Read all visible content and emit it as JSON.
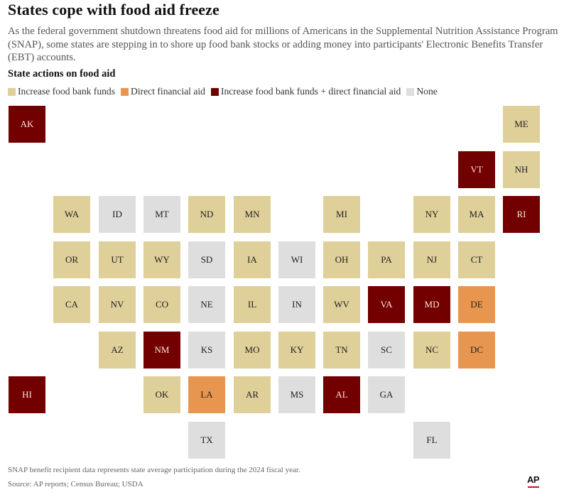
{
  "header": {
    "title": "States cope with food aid freeze",
    "subtitle": "As the federal government shutdown threatens food aid for millions of Americans in the Supplemental Nutrition Assistance Program (SNAP), some states are stepping in to shore up food bank stocks or adding money into participants' Electronic Benefits Transfer (EBT) accounts."
  },
  "legend": {
    "title": "State actions on food aid",
    "items": [
      {
        "key": "fb",
        "label": "Increase food bank funds",
        "color": "#dfcf99"
      },
      {
        "key": "dfa",
        "label": "Direct financial aid",
        "color": "#e8964f"
      },
      {
        "key": "both",
        "label": "Increase food bank funds + direct financial aid",
        "color": "#730000"
      },
      {
        "key": "none",
        "label": "None",
        "color": "#dedede"
      }
    ]
  },
  "chart_data": {
    "type": "heatmap",
    "subtype": "tile-grid-map",
    "title": "State actions on food aid",
    "categories": {
      "fb": "Increase food bank funds",
      "dfa": "Direct financial aid",
      "both": "Increase food bank funds + direct financial aid",
      "none": "None"
    },
    "tiles": [
      {
        "state": "AK",
        "row": 0,
        "col": 0,
        "category": "both"
      },
      {
        "state": "ME",
        "row": 0,
        "col": 11,
        "category": "fb"
      },
      {
        "state": "VT",
        "row": 1,
        "col": 10,
        "category": "both"
      },
      {
        "state": "NH",
        "row": 1,
        "col": 11,
        "category": "fb"
      },
      {
        "state": "WA",
        "row": 2,
        "col": 1,
        "category": "fb"
      },
      {
        "state": "ID",
        "row": 2,
        "col": 2,
        "category": "none"
      },
      {
        "state": "MT",
        "row": 2,
        "col": 3,
        "category": "none"
      },
      {
        "state": "ND",
        "row": 2,
        "col": 4,
        "category": "fb"
      },
      {
        "state": "MN",
        "row": 2,
        "col": 5,
        "category": "fb"
      },
      {
        "state": "MI",
        "row": 2,
        "col": 7,
        "category": "fb"
      },
      {
        "state": "NY",
        "row": 2,
        "col": 9,
        "category": "fb"
      },
      {
        "state": "MA",
        "row": 2,
        "col": 10,
        "category": "fb"
      },
      {
        "state": "RI",
        "row": 2,
        "col": 11,
        "category": "both"
      },
      {
        "state": "OR",
        "row": 3,
        "col": 1,
        "category": "fb"
      },
      {
        "state": "UT",
        "row": 3,
        "col": 2,
        "category": "fb"
      },
      {
        "state": "WY",
        "row": 3,
        "col": 3,
        "category": "fb"
      },
      {
        "state": "SD",
        "row": 3,
        "col": 4,
        "category": "none"
      },
      {
        "state": "IA",
        "row": 3,
        "col": 5,
        "category": "fb"
      },
      {
        "state": "WI",
        "row": 3,
        "col": 6,
        "category": "none"
      },
      {
        "state": "OH",
        "row": 3,
        "col": 7,
        "category": "fb"
      },
      {
        "state": "PA",
        "row": 3,
        "col": 8,
        "category": "fb"
      },
      {
        "state": "NJ",
        "row": 3,
        "col": 9,
        "category": "fb"
      },
      {
        "state": "CT",
        "row": 3,
        "col": 10,
        "category": "fb"
      },
      {
        "state": "CA",
        "row": 4,
        "col": 1,
        "category": "fb"
      },
      {
        "state": "NV",
        "row": 4,
        "col": 2,
        "category": "fb"
      },
      {
        "state": "CO",
        "row": 4,
        "col": 3,
        "category": "fb"
      },
      {
        "state": "NE",
        "row": 4,
        "col": 4,
        "category": "none"
      },
      {
        "state": "IL",
        "row": 4,
        "col": 5,
        "category": "fb"
      },
      {
        "state": "IN",
        "row": 4,
        "col": 6,
        "category": "none"
      },
      {
        "state": "WV",
        "row": 4,
        "col": 7,
        "category": "fb"
      },
      {
        "state": "VA",
        "row": 4,
        "col": 8,
        "category": "both"
      },
      {
        "state": "MD",
        "row": 4,
        "col": 9,
        "category": "both"
      },
      {
        "state": "DE",
        "row": 4,
        "col": 10,
        "category": "dfa"
      },
      {
        "state": "AZ",
        "row": 5,
        "col": 2,
        "category": "fb"
      },
      {
        "state": "NM",
        "row": 5,
        "col": 3,
        "category": "both"
      },
      {
        "state": "KS",
        "row": 5,
        "col": 4,
        "category": "none"
      },
      {
        "state": "MO",
        "row": 5,
        "col": 5,
        "category": "fb"
      },
      {
        "state": "KY",
        "row": 5,
        "col": 6,
        "category": "fb"
      },
      {
        "state": "TN",
        "row": 5,
        "col": 7,
        "category": "fb"
      },
      {
        "state": "SC",
        "row": 5,
        "col": 8,
        "category": "none"
      },
      {
        "state": "NC",
        "row": 5,
        "col": 9,
        "category": "fb"
      },
      {
        "state": "DC",
        "row": 5,
        "col": 10,
        "category": "dfa"
      },
      {
        "state": "HI",
        "row": 6,
        "col": 0,
        "category": "both"
      },
      {
        "state": "OK",
        "row": 6,
        "col": 3,
        "category": "fb"
      },
      {
        "state": "LA",
        "row": 6,
        "col": 4,
        "category": "dfa"
      },
      {
        "state": "AR",
        "row": 6,
        "col": 5,
        "category": "fb"
      },
      {
        "state": "MS",
        "row": 6,
        "col": 6,
        "category": "none"
      },
      {
        "state": "AL",
        "row": 6,
        "col": 7,
        "category": "both"
      },
      {
        "state": "GA",
        "row": 6,
        "col": 8,
        "category": "none"
      },
      {
        "state": "TX",
        "row": 7,
        "col": 4,
        "category": "none"
      },
      {
        "state": "FL",
        "row": 7,
        "col": 9,
        "category": "none"
      }
    ]
  },
  "footer": {
    "note": "SNAP benefit recipient data represents state average participation during the 2024 fiscal year.",
    "source": "Source: AP reports; Census Bureau; USDA",
    "logo": "AP"
  }
}
